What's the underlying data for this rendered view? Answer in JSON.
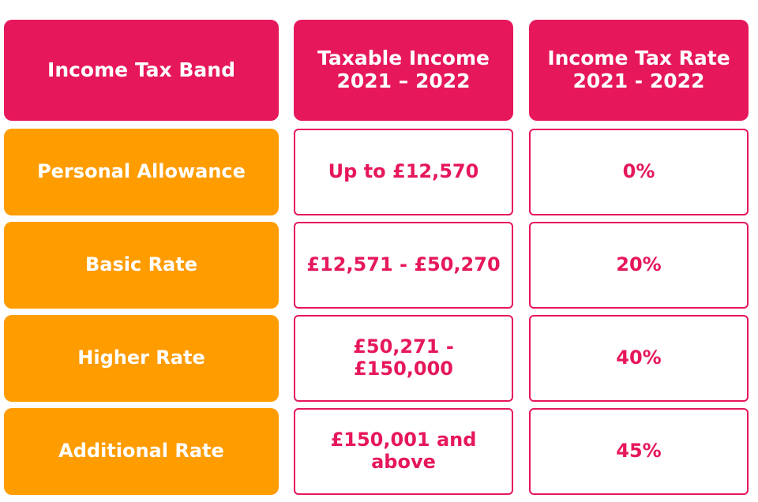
{
  "headers": {
    "band": "Income Tax Band",
    "income": "Taxable Income 2021 – 2022",
    "rate": "Income Tax Rate 2021 - 2022"
  },
  "rows": [
    {
      "band": "Personal Allowance",
      "income": "Up to £12,570",
      "rate": "0%"
    },
    {
      "band": "Basic Rate",
      "income": "£12,571 - £50,270",
      "rate": "20%"
    },
    {
      "band": "Higher Rate",
      "income": "£50,271 - £150,000",
      "rate": "40%"
    },
    {
      "band": "Additional Rate",
      "income": "£150,001 and above",
      "rate": "45%"
    }
  ],
  "colors": {
    "header": "#e6175a",
    "band": "#ff9c00",
    "value_text": "#e6175a"
  }
}
